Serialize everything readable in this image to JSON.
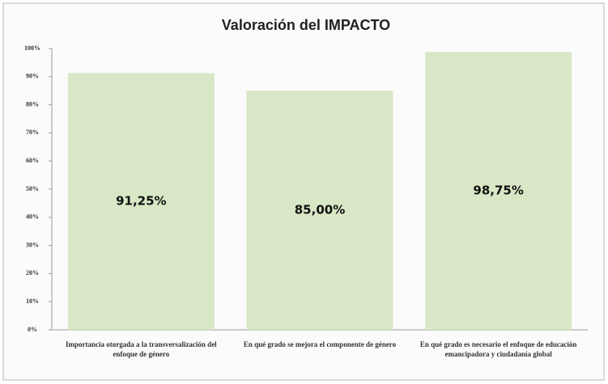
{
  "chart_data": {
    "type": "bar",
    "title": "Valoración del IMPACTO",
    "categories": [
      "Importancia otorgada a la transversalización del enfoque de género",
      "En qué grado se mejora el componente de género",
      "En qué grado es necesario el enfoque de educación emancipadora y ciudadanía global"
    ],
    "values": [
      91.25,
      85,
      98.75
    ],
    "value_labels": [
      "91,25%",
      "85,00%",
      "98,75%"
    ],
    "color": "#d8e7c5",
    "ylim": [
      0,
      100
    ],
    "yticks": [
      {
        "value": 0,
        "label": "0%"
      },
      {
        "value": 10,
        "label": "10%"
      },
      {
        "value": 20,
        "label": "20%"
      },
      {
        "value": 30,
        "label": "30%"
      },
      {
        "value": 40,
        "label": "40%"
      },
      {
        "value": 50,
        "label": "50%"
      },
      {
        "value": 60,
        "label": "60%"
      },
      {
        "value": 70,
        "label": "70%"
      },
      {
        "value": 80,
        "label": "80%"
      },
      {
        "value": 90,
        "label": "90%"
      },
      {
        "value": 100,
        "label": "100%"
      }
    ]
  }
}
